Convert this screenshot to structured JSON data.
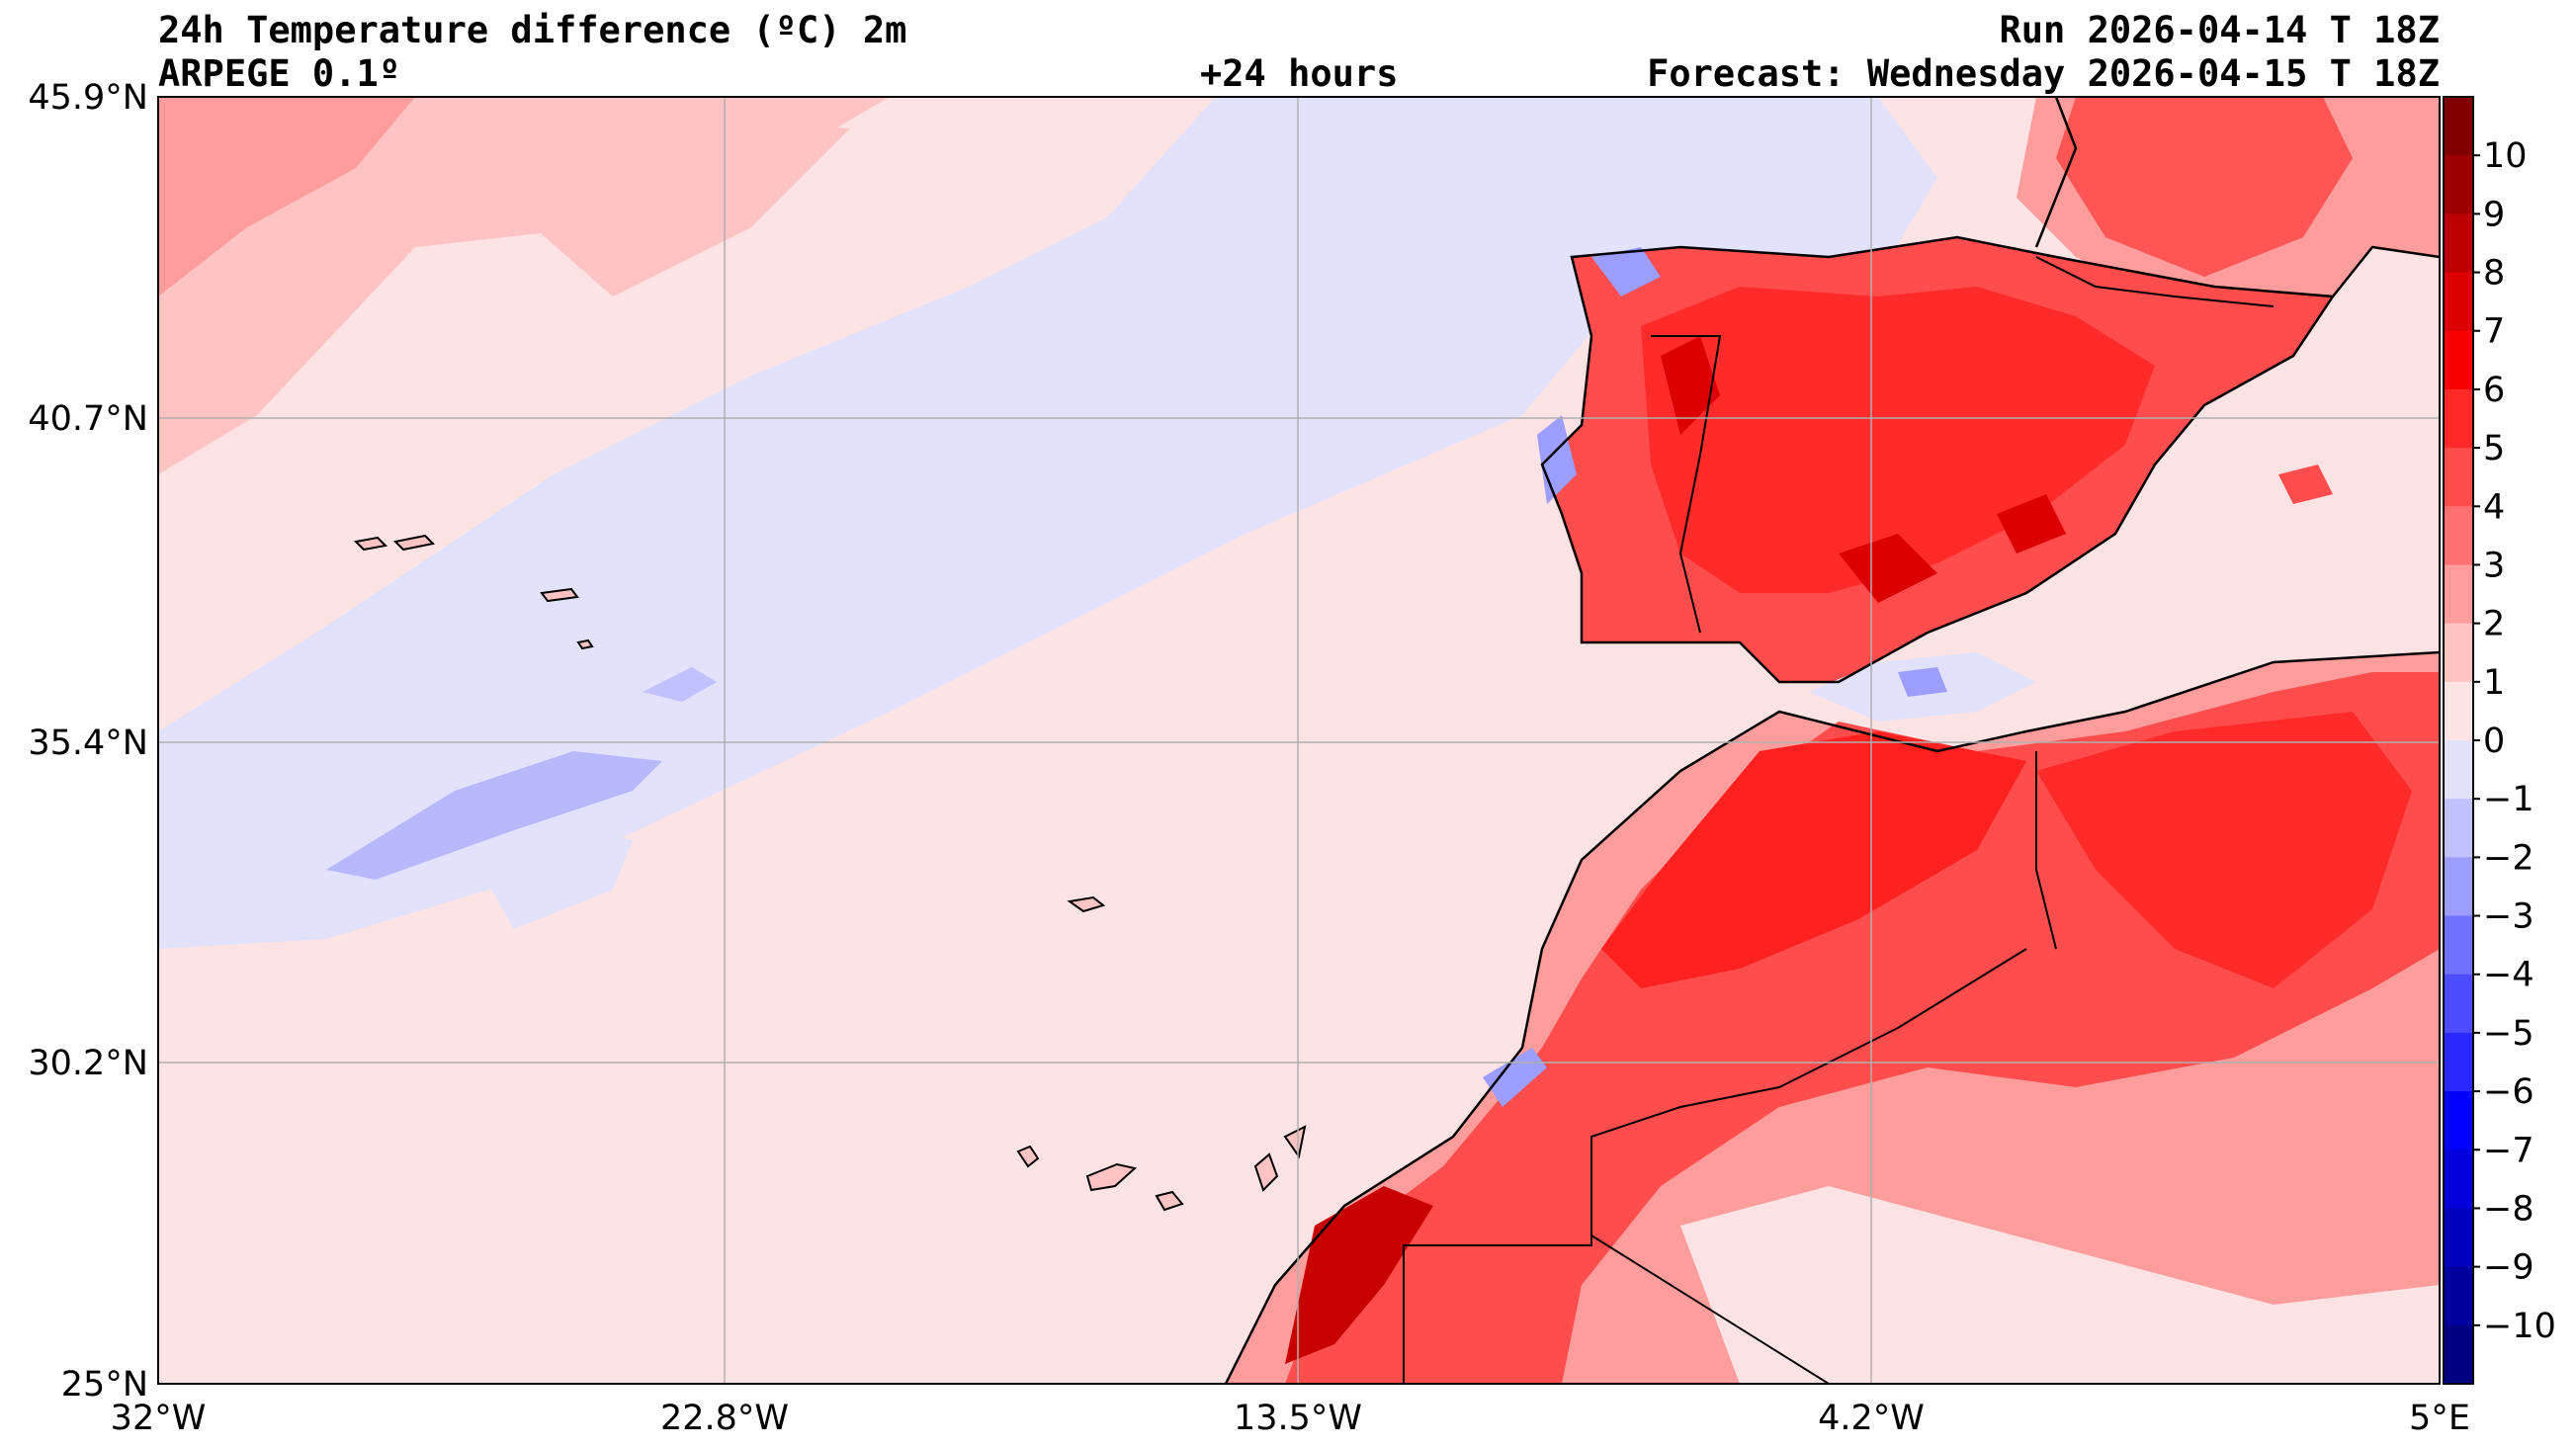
{
  "header": {
    "title": "24h Temperature difference (ºC) 2m",
    "model": "ARPEGE 0.1º",
    "lead": "+24 hours",
    "run": "Run 2026-04-14 T 18Z",
    "forecast": "Forecast: Wednesday 2026-04-15 T 18Z"
  },
  "axes": {
    "lat_labels": [
      "45.9°N",
      "40.7°N",
      "35.4°N",
      "30.2°N",
      "25°N"
    ],
    "lon_labels": [
      "32°W",
      "22.8°W",
      "13.5°W",
      "4.2°W",
      "5°E"
    ],
    "lat_range": [
      25,
      45.9
    ],
    "lon_range": [
      -32,
      5
    ]
  },
  "colorbar": {
    "labels": [
      "10",
      "9",
      "8",
      "7",
      "6",
      "5",
      "4",
      "3",
      "2",
      "1",
      "0",
      "−1",
      "−2",
      "−3",
      "−4",
      "−5",
      "−6",
      "−7",
      "−8",
      "−9",
      "−10"
    ],
    "colors": [
      "#800000",
      "#9e0000",
      "#bd0000",
      "#dc0000",
      "#fb0000",
      "#ff2929",
      "#ff4d4d",
      "#ff7171",
      "#ff9d9d",
      "#ffc3c3",
      "#fde3e3",
      "#e2e2fc",
      "#c1c1ff",
      "#9d9dff",
      "#7171ff",
      "#4d4dff",
      "#2929ff",
      "#0000fb",
      "#0000dc",
      "#0000bd",
      "#00009e",
      "#000080"
    ],
    "range": [
      -11,
      11
    ]
  },
  "palette": {
    "ocean_pos": "#fde3e3",
    "ocean_neg": "#e2e2fc",
    "land_warm": "#ff4040",
    "land_mid": "#ff7a7a",
    "land_light": "#ff9d9d",
    "grid": "#b0b0b0",
    "coast": "#000000"
  }
}
